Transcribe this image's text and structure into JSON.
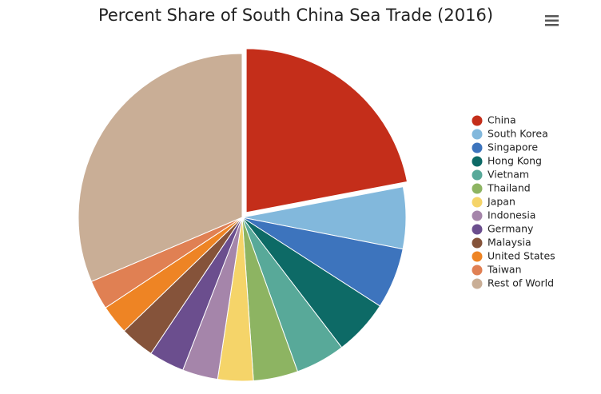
{
  "chart_data": {
    "type": "pie",
    "title": "Percent Share of South China Sea Trade (2016)",
    "categories": [
      "China",
      "South Korea",
      "Singapore",
      "Hong Kong",
      "Vietnam",
      "Thailand",
      "Japan",
      "Indonesia",
      "Germany",
      "Malaysia",
      "United States",
      "Taiwan",
      "Rest of World"
    ],
    "values": [
      22,
      6.1,
      6,
      5.5,
      4.9,
      4.4,
      3.5,
      3.5,
      3.5,
      3.4,
      2.9,
      2.9,
      31.4
    ],
    "colors": [
      "#c42e1a",
      "#82b8dc",
      "#3d74bd",
      "#0d6a66",
      "#58a999",
      "#8db462",
      "#f5d469",
      "#a585aa",
      "#6b4e8e",
      "#85533a",
      "#ee8424",
      "#e08053",
      "#c9ae96"
    ],
    "exploded": [
      0
    ],
    "legend": "right"
  }
}
